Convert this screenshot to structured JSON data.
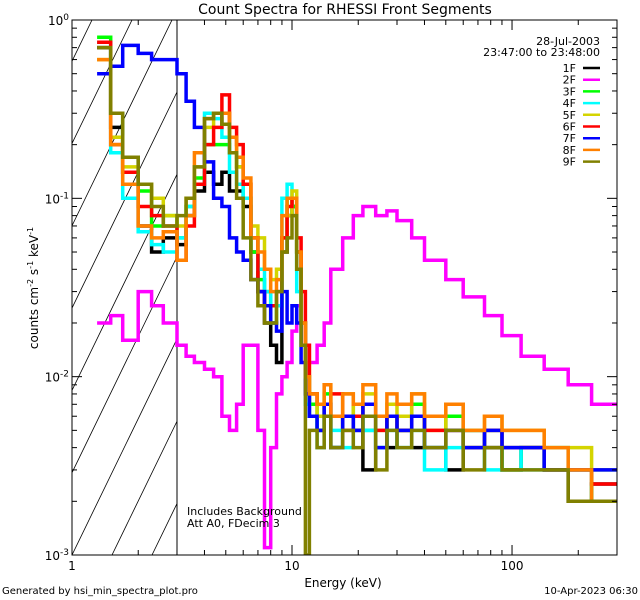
{
  "chart_data": {
    "type": "line",
    "title": "Count Spectra for RHESSI Front Segments",
    "xlabel": "Energy (keV)",
    "ylabel": "counts cm-2 s-1 keV-1",
    "xscale": "log",
    "yscale": "log",
    "xlim": [
      1,
      300
    ],
    "ylim": [
      0.001,
      1
    ],
    "x_ticks": [
      {
        "value": 1,
        "label": "1"
      },
      {
        "value": 10,
        "label": "10"
      },
      {
        "value": 100,
        "label": "100"
      }
    ],
    "y_ticks": [
      {
        "value": 1,
        "base": "10",
        "exp": "0"
      },
      {
        "value": 0.1,
        "base": "10",
        "exp": "-1"
      },
      {
        "value": 0.01,
        "base": "10",
        "exp": "-2"
      },
      {
        "value": 0.001,
        "base": "10",
        "exp": "-3"
      }
    ],
    "hatched_region_keV": [
      1,
      3
    ],
    "annotations": {
      "date": "28-Jul-2003",
      "time_range": "23:47:00 to 23:48:00",
      "note1": "Includes Background",
      "note2": "Att A0, FDecim 3"
    },
    "legend_position": "top-right",
    "bin_edges_keV": [
      1.3,
      1.5,
      1.7,
      2.0,
      2.3,
      2.6,
      3.0,
      3.3,
      3.6,
      4.0,
      4.4,
      4.8,
      5.2,
      5.6,
      6.0,
      6.5,
      7.0,
      7.5,
      8.0,
      8.5,
      9.0,
      9.5,
      10,
      10.5,
      11,
      11.5,
      12,
      13,
      14,
      15,
      17,
      19,
      21,
      24,
      27,
      30,
      35,
      40,
      50,
      60,
      75,
      90,
      110,
      140,
      180,
      230,
      300
    ],
    "series": [
      {
        "name": "1F",
        "color": "#000000",
        "values": [
          0.7,
          0.25,
          0.14,
          0.07,
          0.05,
          0.06,
          0.055,
          0.08,
          0.11,
          0.14,
          0.12,
          0.14,
          0.11,
          0.11,
          0.09,
          0.05,
          0.03,
          0.02,
          0.015,
          0.012,
          0.05,
          0.08,
          0.09,
          0.05,
          0.02,
          0.008,
          0.006,
          0.005,
          0.007,
          0.004,
          0.006,
          0.005,
          0.003,
          0.006,
          0.004,
          0.005,
          0.004,
          0.006,
          0.003,
          0.005,
          0.004,
          0.003,
          0.004,
          0.003,
          0.002,
          0.0025
        ]
      },
      {
        "name": "2F",
        "color": "#ff00ff",
        "values": [
          0.02,
          0.022,
          0.016,
          0.03,
          0.025,
          0.02,
          0.015,
          0.013,
          0.012,
          0.011,
          0.01,
          0.006,
          0.005,
          0.007,
          0.015,
          0.015,
          0.005,
          0.0011,
          0.004,
          0.008,
          0.01,
          0.012,
          0.018,
          0.025,
          0.02,
          0.015,
          0.012,
          0.015,
          0.02,
          0.04,
          0.06,
          0.08,
          0.09,
          0.08,
          0.085,
          0.075,
          0.06,
          0.045,
          0.035,
          0.028,
          0.022,
          0.017,
          0.013,
          0.011,
          0.009,
          0.007
        ]
      },
      {
        "name": "3F",
        "color": "#00ff00",
        "values": [
          0.8,
          0.3,
          0.17,
          0.11,
          0.07,
          0.08,
          0.06,
          0.09,
          0.13,
          0.2,
          0.2,
          0.2,
          0.18,
          0.15,
          0.1,
          0.05,
          0.035,
          0.03,
          0.02,
          0.025,
          0.06,
          0.1,
          0.09,
          0.04,
          0.02,
          0.01,
          0.007,
          0.005,
          0.008,
          0.004,
          0.006,
          0.007,
          0.005,
          0.004,
          0.006,
          0.005,
          0.007,
          0.004,
          0.006,
          0.004,
          0.005,
          0.003,
          0.004,
          0.003,
          0.003,
          0.002
        ]
      },
      {
        "name": "4F",
        "color": "#00ffff",
        "values": [
          0.75,
          0.18,
          0.1,
          0.065,
          0.055,
          0.05,
          0.06,
          0.09,
          0.12,
          0.3,
          0.28,
          0.22,
          0.14,
          0.12,
          0.1,
          0.06,
          0.04,
          0.03,
          0.025,
          0.025,
          0.1,
          0.12,
          0.08,
          0.03,
          0.015,
          0.007,
          0.006,
          0.004,
          0.006,
          0.005,
          0.004,
          0.006,
          0.005,
          0.004,
          0.005,
          0.004,
          0.005,
          0.003,
          0.004,
          0.005,
          0.003,
          0.004,
          0.003,
          0.004,
          0.003,
          0.003
        ]
      },
      {
        "name": "5F",
        "color": "#d4d400",
        "values": [
          0.6,
          0.22,
          0.15,
          0.12,
          0.1,
          0.08,
          0.07,
          0.1,
          0.15,
          0.25,
          0.3,
          0.3,
          0.22,
          0.15,
          0.12,
          0.07,
          0.06,
          0.04,
          0.035,
          0.04,
          0.06,
          0.08,
          0.11,
          0.05,
          0.02,
          0.012,
          0.008,
          0.006,
          0.009,
          0.006,
          0.008,
          0.006,
          0.008,
          0.005,
          0.007,
          0.006,
          0.008,
          0.005,
          0.007,
          0.005,
          0.006,
          0.005,
          0.005,
          0.004,
          0.004,
          0.003
        ]
      },
      {
        "name": "6F",
        "color": "#ff0000",
        "values": [
          0.75,
          0.2,
          0.14,
          0.09,
          0.08,
          0.07,
          0.045,
          0.07,
          0.12,
          0.2,
          0.25,
          0.38,
          0.25,
          0.2,
          0.12,
          0.06,
          0.03,
          0.025,
          0.025,
          0.03,
          0.06,
          0.09,
          0.1,
          0.06,
          0.03,
          0.015,
          0.008,
          0.007,
          0.006,
          0.008,
          0.005,
          0.006,
          0.007,
          0.005,
          0.006,
          0.005,
          0.006,
          0.005,
          0.005,
          0.004,
          0.005,
          0.004,
          0.004,
          0.003,
          0.003,
          0.0025
        ]
      },
      {
        "name": "7F",
        "color": "#0000ff",
        "values": [
          0.5,
          0.55,
          0.72,
          0.65,
          0.6,
          0.6,
          0.5,
          0.35,
          0.25,
          0.16,
          0.1,
          0.09,
          0.06,
          0.05,
          0.045,
          0.035,
          0.03,
          0.025,
          0.02,
          0.018,
          0.03,
          0.02,
          0.025,
          0.02,
          0.012,
          0.008,
          0.006,
          0.005,
          0.007,
          0.004,
          0.006,
          0.005,
          0.007,
          0.004,
          0.006,
          0.005,
          0.006,
          0.004,
          0.005,
          0.004,
          0.005,
          0.004,
          0.004,
          0.003,
          0.003,
          0.003
        ]
      },
      {
        "name": "8F",
        "color": "#ff8000",
        "values": [
          0.6,
          0.2,
          0.12,
          0.07,
          0.06,
          0.065,
          0.045,
          0.08,
          0.18,
          0.28,
          0.3,
          0.3,
          0.22,
          0.17,
          0.13,
          0.06,
          0.05,
          0.04,
          0.03,
          0.035,
          0.08,
          0.1,
          0.1,
          0.05,
          0.02,
          0.01,
          0.008,
          0.007,
          0.009,
          0.006,
          0.008,
          0.007,
          0.009,
          0.006,
          0.008,
          0.007,
          0.008,
          0.006,
          0.007,
          0.005,
          0.006,
          0.005,
          0.005,
          0.004,
          0.003,
          0.002
        ]
      },
      {
        "name": "9F",
        "color": "#808000",
        "values": [
          0.7,
          0.3,
          0.17,
          0.12,
          0.09,
          0.07,
          0.08,
          0.1,
          0.15,
          0.28,
          0.3,
          0.26,
          0.18,
          0.1,
          0.06,
          0.035,
          0.025,
          0.02,
          0.02,
          0.03,
          0.05,
          0.06,
          0.08,
          0.04,
          0.015,
          0.001,
          0.005,
          0.004,
          0.006,
          0.004,
          0.005,
          0.004,
          0.006,
          0.003,
          0.005,
          0.004,
          0.005,
          0.004,
          0.005,
          0.003,
          0.004,
          0.003,
          0.003,
          0.003,
          0.002,
          0.002
        ]
      }
    ]
  },
  "footer": {
    "generated_by": "Generated by hsi_min_spectra_plot.pro",
    "timestamp": "10-Apr-2023 06:30"
  }
}
